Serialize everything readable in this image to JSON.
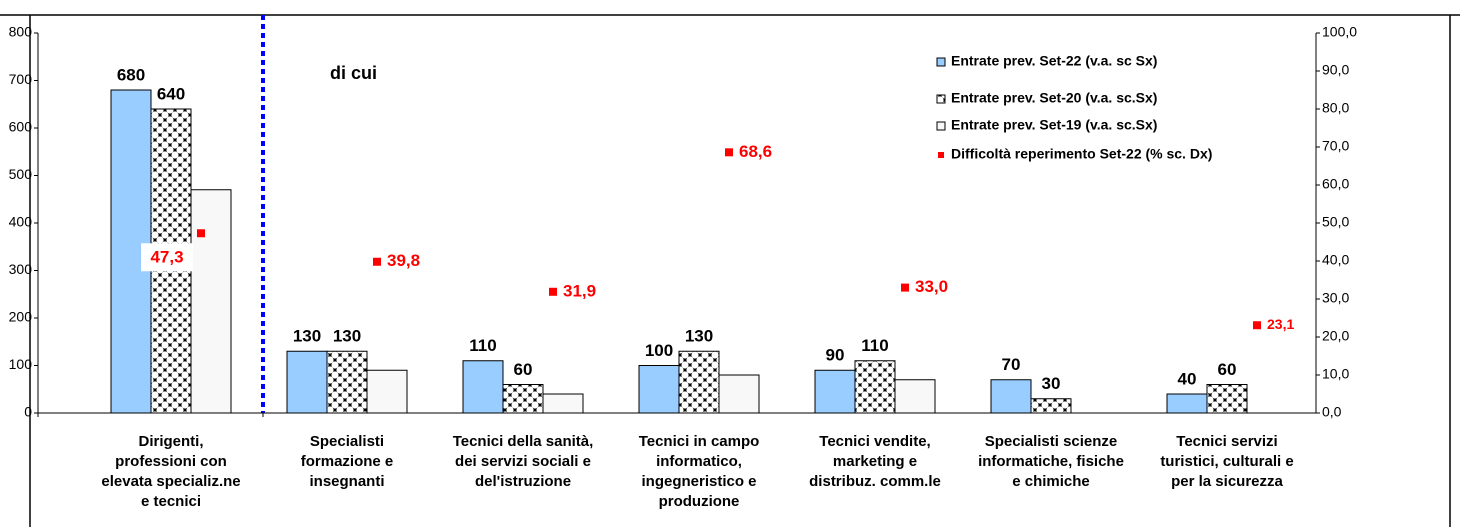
{
  "chart_data": {
    "type": "bar",
    "annotation": "di cui",
    "categories": [
      "Dirigenti,\nprofessioni con\nelevata specializ.ne\ne tecnici",
      "Specialisti\nformazione e\ninsegnanti",
      "Tecnici della sanità,\ndei servizi sociali e\ndel'istruzione",
      "Tecnici in campo\ninformatico,\ningegneristico e\nproduzione",
      "Tecnici vendite,\nmarketing e\ndistribuz. comm.le",
      "Specialisti scienze\ninformatiche, fisiche\ne chimiche",
      "Tecnici servizi\nturistici, culturali e\nper la sicurezza"
    ],
    "series": [
      {
        "name": "Entrate prev. Set-22 (v.a. sc Sx)",
        "color": "#99ccff",
        "values": [
          680,
          130,
          110,
          100,
          90,
          70,
          40
        ]
      },
      {
        "name": "Entrate prev. Set-20 (v.a. sc.Sx)",
        "color": "#000000",
        "values": [
          640,
          130,
          60,
          130,
          110,
          30,
          60
        ]
      },
      {
        "name": "Entrate prev. Set-19 (v.a. sc.Sx)",
        "color": "#f8f8f8",
        "values": [
          470,
          90,
          40,
          80,
          70,
          null,
          null
        ]
      },
      {
        "name": "Difficoltà reperimento Set-22 (% sc. Dx)",
        "color": "#ff0000",
        "axis": "y2",
        "type": "scatter",
        "values": [
          47.3,
          39.8,
          31.9,
          68.6,
          33.0,
          null,
          23.1
        ],
        "value_labels": [
          "47,3",
          "39,8",
          "31,9",
          "68,6",
          "33,0",
          null,
          "23,1"
        ]
      }
    ],
    "ylim": [
      0,
      800
    ],
    "yticks": [
      0,
      100,
      200,
      300,
      400,
      500,
      600,
      700,
      800
    ],
    "y2lim": [
      0,
      100
    ],
    "y2ticks": [
      {
        "value": 0,
        "label": "0,0"
      },
      {
        "value": 10,
        "label": "10,0"
      },
      {
        "value": 20,
        "label": "20,0"
      },
      {
        "value": 30,
        "label": "30,0"
      },
      {
        "value": 40,
        "label": "40,0"
      },
      {
        "value": 50,
        "label": "50,0"
      },
      {
        "value": 60,
        "label": "60,0"
      },
      {
        "value": 70,
        "label": "70,0"
      },
      {
        "value": 80,
        "label": "80,0"
      },
      {
        "value": 90,
        "label": "90,0"
      },
      {
        "value": 100,
        "label": {
          "value": 100,
          "label": "100,0"
        }
      }
    ]
  }
}
